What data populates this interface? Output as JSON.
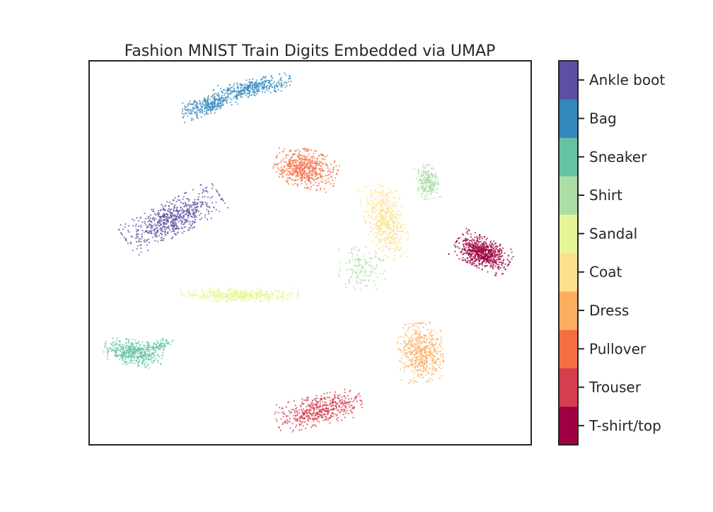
{
  "chart_data": {
    "type": "scatter",
    "title": "Fashion MNIST Train Digits Embedded via UMAP",
    "xlabel": "",
    "ylabel": "",
    "axis_ticks": "hidden",
    "xlim": [
      0,
      100
    ],
    "ylim": [
      0,
      100
    ],
    "grid": false,
    "legend": "colorbar-right",
    "point_size": "tiny",
    "colormap": "Spectral (discrete, 10 classes)",
    "colorbar": {
      "labels": [
        "T-shirt/top",
        "Trouser",
        "Pullover",
        "Dress",
        "Coat",
        "Sandal",
        "Shirt",
        "Sneaker",
        "Bag",
        "Ankle boot"
      ],
      "colors": [
        "#9e0142",
        "#d53e4f",
        "#f46d43",
        "#fdae61",
        "#fee08b",
        "#e6f598",
        "#abdda4",
        "#66c2a5",
        "#3288bd",
        "#5e4fa2"
      ]
    },
    "series": [
      {
        "name": "T-shirt/top",
        "color": "#9e0142",
        "clusters": [
          {
            "x": 89,
            "y": 50,
            "rx": 6,
            "ry": 3.5,
            "n": 700,
            "angle": -28
          }
        ]
      },
      {
        "name": "Trouser",
        "color": "#d53e4f",
        "clusters": [
          {
            "x": 52,
            "y": 9,
            "rx": 9,
            "ry": 3.5,
            "n": 500,
            "angle": 15
          }
        ]
      },
      {
        "name": "Pullover",
        "color": "#f46d43",
        "clusters": [
          {
            "x": 49,
            "y": 72,
            "rx": 6.5,
            "ry": 4.5,
            "n": 550,
            "angle": -15
          }
        ]
      },
      {
        "name": "Dress",
        "color": "#fdae61",
        "clusters": [
          {
            "x": 75,
            "y": 24,
            "rx": 4.5,
            "ry": 7,
            "n": 550,
            "angle": 5
          }
        ]
      },
      {
        "name": "Coat",
        "color": "#fee08b",
        "clusters": [
          {
            "x": 67,
            "y": 58,
            "rx": 4,
            "ry": 9,
            "n": 550,
            "angle": 12
          }
        ]
      },
      {
        "name": "Sandal",
        "color": "#e6f598",
        "clusters": [
          {
            "x": 34,
            "y": 39,
            "rx": 12,
            "ry": 1.6,
            "n": 500,
            "angle": 0
          }
        ]
      },
      {
        "name": "Shirt",
        "color": "#abdda4",
        "clusters": [
          {
            "x": 76.5,
            "y": 68.5,
            "rx": 2.2,
            "ry": 4,
            "n": 250,
            "angle": 10
          },
          {
            "x": 62,
            "y": 46,
            "rx": 5,
            "ry": 5,
            "n": 150,
            "angle": 0
          }
        ]
      },
      {
        "name": "Sneaker",
        "color": "#66c2a5",
        "clusters": [
          {
            "x": 10,
            "y": 24,
            "rx": 6,
            "ry": 3,
            "n": 450,
            "angle": -10
          },
          {
            "x": 16,
            "y": 26,
            "rx": 3,
            "ry": 1.2,
            "n": 80,
            "angle": 20
          }
        ]
      },
      {
        "name": "Bag",
        "color": "#3288bd",
        "clusters": [
          {
            "x": 37,
            "y": 93,
            "rx": 8,
            "ry": 2,
            "n": 350,
            "angle": 12
          },
          {
            "x": 27,
            "y": 88.5,
            "rx": 6,
            "ry": 2.2,
            "n": 300,
            "angle": 20
          }
        ]
      },
      {
        "name": "Ankle boot",
        "color": "#5e4fa2",
        "clusters": [
          {
            "x": 19,
            "y": 59,
            "rx": 11,
            "ry": 4,
            "n": 650,
            "angle": 30
          }
        ]
      }
    ]
  }
}
